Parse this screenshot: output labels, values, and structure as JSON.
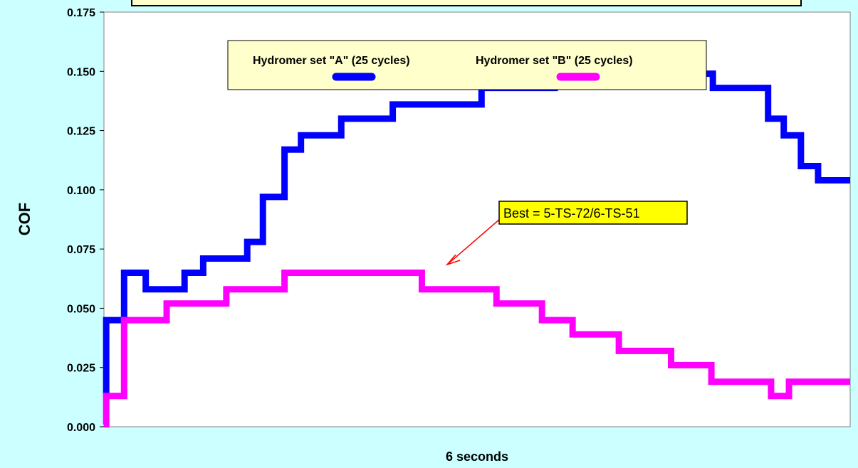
{
  "chart_data": {
    "type": "line",
    "step": true,
    "xlabel": "6 seconds",
    "ylabel": "COF",
    "xlim": [
      0,
      100
    ],
    "ylim": [
      0,
      0.175
    ],
    "yticks": [
      "0.000",
      "0.025",
      "0.050",
      "0.075",
      "0.100",
      "0.125",
      "0.150",
      "0.175"
    ],
    "grid": false,
    "legend_position": "top-center",
    "series": [
      {
        "name": "Hydromer set \"A\"  (25 cycles)",
        "color": "#0000ff",
        "points": [
          [
            0,
            0.013
          ],
          [
            0.3,
            0.045
          ],
          [
            2.7,
            0.065
          ],
          [
            5.6,
            0.058
          ],
          [
            10.8,
            0.065
          ],
          [
            13.3,
            0.071
          ],
          [
            19.2,
            0.078
          ],
          [
            21.3,
            0.097
          ],
          [
            24.2,
            0.117
          ],
          [
            26.4,
            0.123
          ],
          [
            31.8,
            0.13
          ],
          [
            38.7,
            0.136
          ],
          [
            50.6,
            0.143
          ],
          [
            60.4,
            0.149
          ],
          [
            81.6,
            0.143
          ],
          [
            89,
            0.13
          ],
          [
            91.1,
            0.123
          ],
          [
            93.4,
            0.11
          ],
          [
            95.7,
            0.104
          ],
          [
            100,
            0.104
          ]
        ]
      },
      {
        "name": "Hydromer set \"B\"  (25 cycles)",
        "color": "#ff00ff",
        "points": [
          [
            0,
            0.001
          ],
          [
            0.3,
            0.013
          ],
          [
            2.7,
            0.045
          ],
          [
            8.4,
            0.052
          ],
          [
            16.4,
            0.058
          ],
          [
            24.2,
            0.065
          ],
          [
            42.6,
            0.058
          ],
          [
            52.6,
            0.052
          ],
          [
            58.7,
            0.045
          ],
          [
            62.8,
            0.039
          ],
          [
            69,
            0.032
          ],
          [
            76,
            0.026
          ],
          [
            81.4,
            0.019
          ],
          [
            89.4,
            0.013
          ],
          [
            91.8,
            0.019
          ],
          [
            100,
            0.019
          ]
        ]
      }
    ],
    "annotations": [
      {
        "text": "Best = 5-TS-72/6-TS-51",
        "target": [
          45.6,
          0.068
        ]
      }
    ]
  }
}
